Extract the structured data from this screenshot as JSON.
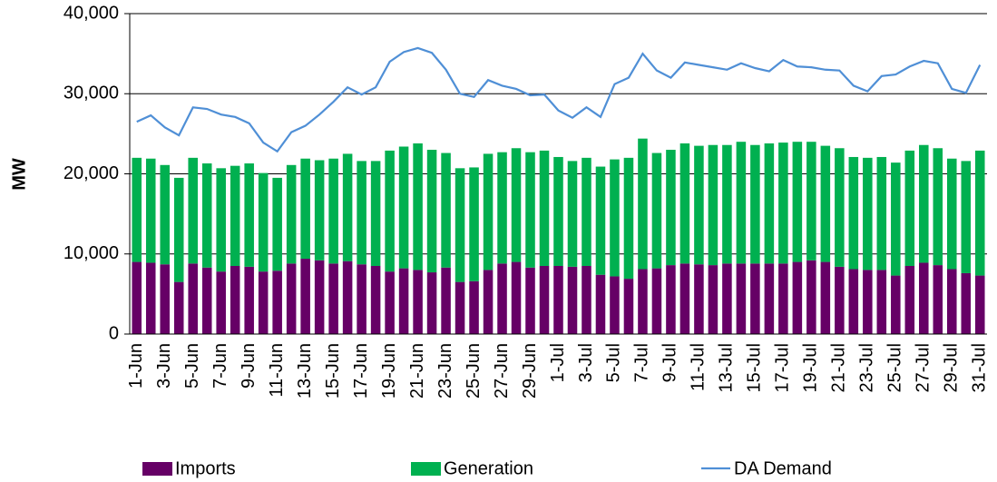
{
  "chart_data": {
    "type": "bar",
    "y_label": "MW",
    "categories": [
      "1-Jun",
      null,
      "3-Jun",
      null,
      "5-Jun",
      null,
      "7-Jun",
      null,
      "9-Jun",
      null,
      "11-Jun",
      null,
      "13-Jun",
      null,
      "15-Jun",
      null,
      "17-Jun",
      null,
      "19-Jun",
      null,
      "21-Jun",
      null,
      "23-Jun",
      null,
      "25-Jun",
      null,
      "27-Jun",
      null,
      "29-Jun",
      null,
      "1-Jul",
      null,
      "3-Jul",
      null,
      "5-Jul",
      null,
      "7-Jul",
      null,
      "9-Jul",
      null,
      "11-Jul",
      null,
      "13-Jul",
      null,
      "15-Jul",
      null,
      "17-Jul",
      null,
      "19-Jul",
      null,
      "21-Jul",
      null,
      "23-Jul",
      null,
      "25-Jul",
      null,
      "27-Jul",
      null,
      "29-Jul",
      null,
      "31-Jul"
    ],
    "series": [
      {
        "name": "Imports",
        "color": "#660066",
        "stack": true,
        "values": [
          9000,
          8900,
          8700,
          6500,
          8800,
          8300,
          7800,
          8500,
          8400,
          7800,
          7900,
          8800,
          9400,
          9200,
          8800,
          9100,
          8700,
          8500,
          7800,
          8200,
          8000,
          7700,
          8300,
          6500,
          6600,
          8000,
          8800,
          9000,
          8300,
          8500,
          8500,
          8400,
          8500,
          7400,
          7200,
          6900,
          8100,
          8200,
          8600,
          8800,
          8700,
          8600,
          8800,
          8800,
          8800,
          8800,
          8800,
          9000,
          9200,
          9000,
          8400,
          8100,
          8000,
          8000,
          7300,
          8500,
          8900,
          8600,
          8100,
          7600,
          7300
        ]
      },
      {
        "name": "Generation",
        "color": "#00b050",
        "stack": true,
        "values": [
          13000,
          13000,
          12400,
          13000,
          13200,
          13000,
          12900,
          12500,
          12900,
          12300,
          11600,
          12300,
          12500,
          12500,
          13100,
          13400,
          12900,
          13100,
          15100,
          15200,
          15800,
          15300,
          14300,
          14200,
          14200,
          14500,
          13900,
          14200,
          14400,
          14400,
          13600,
          13200,
          13500,
          13500,
          14600,
          15100,
          16300,
          14400,
          14400,
          15000,
          14800,
          15000,
          14800,
          15200,
          14800,
          15000,
          15100,
          15000,
          14800,
          14500,
          14800,
          14000,
          14000,
          14100,
          14100,
          14400,
          14700,
          14600,
          13800,
          14000,
          15600
        ]
      },
      {
        "name": "DA Demand",
        "color": "#4f8fd6",
        "type": "line",
        "values": [
          26500,
          27300,
          25800,
          24800,
          28300,
          28100,
          27400,
          27100,
          26300,
          23900,
          22800,
          25200,
          26000,
          27400,
          29000,
          30800,
          29900,
          30800,
          34000,
          35200,
          35700,
          35100,
          33000,
          30000,
          29600,
          31700,
          31000,
          30600,
          29800,
          29900,
          27900,
          27000,
          28300,
          27100,
          31200,
          32000,
          35000,
          32900,
          32000,
          33900,
          33600,
          33300,
          33000,
          33800,
          33200,
          32800,
          34200,
          33400,
          33300,
          33000,
          32900,
          31000,
          30300,
          32200,
          32400,
          33400,
          34100,
          33800,
          30600,
          30100,
          33600
        ]
      }
    ],
    "ylim": [
      0,
      40000
    ],
    "yticks": [
      0,
      {
        "value": 10000,
        "label": "10,000"
      },
      {
        "value": 20000,
        "label": "20,000"
      },
      {
        "value": 30000,
        "label": "30,000"
      },
      {
        "value": 40000,
        "label": "40,000"
      }
    ],
    "grid": true,
    "legend": "bottom"
  }
}
